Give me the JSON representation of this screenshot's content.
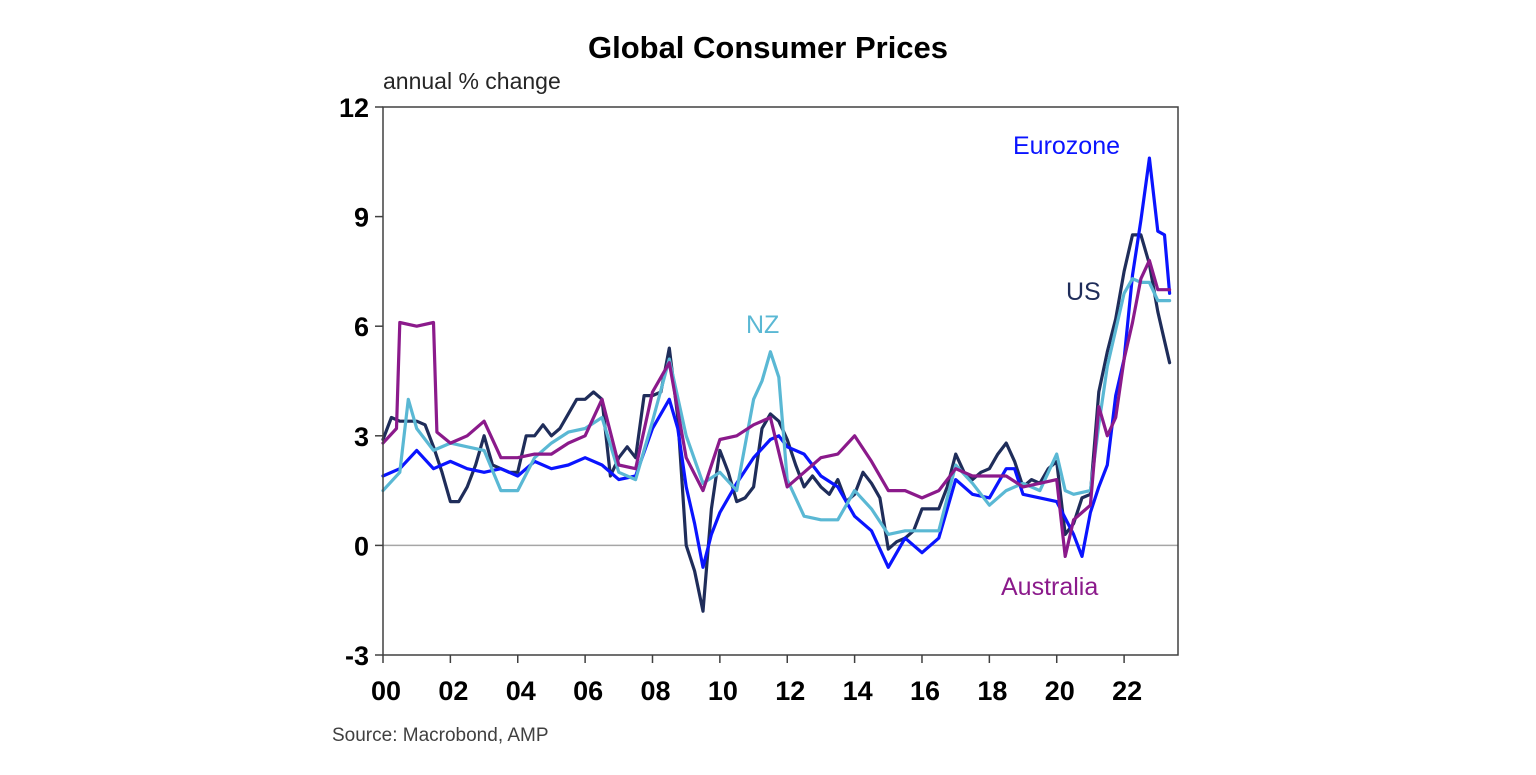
{
  "chart_data": {
    "type": "line",
    "title": "Global Consumer Prices",
    "ylabel": "annual % change",
    "xlabel": "",
    "source": "Source: Macrobond, AMP",
    "ylim": [
      -3,
      12
    ],
    "xlim": [
      2000,
      2023.6
    ],
    "y_ticks": [
      -3,
      0,
      3,
      6,
      9,
      12
    ],
    "y_tick_labels": [
      "-3",
      "0",
      "3",
      "6",
      "9",
      "12"
    ],
    "x_ticks": [
      2000,
      2002,
      2004,
      2006,
      2008,
      2010,
      2012,
      2014,
      2016,
      2018,
      2020,
      2022
    ],
    "x_tick_labels": [
      "00",
      "02",
      "04",
      "06",
      "08",
      "10",
      "12",
      "14",
      "16",
      "18",
      "20",
      "22"
    ],
    "zero_line": true,
    "series": [
      {
        "name": "US",
        "label": "US",
        "color": "#1f2d5a",
        "x": [
          2000,
          2000.25,
          2000.5,
          2000.75,
          2001,
          2001.25,
          2001.5,
          2001.75,
          2002,
          2002.25,
          2002.5,
          2002.75,
          2003,
          2003.25,
          2003.5,
          2003.75,
          2004,
          2004.25,
          2004.5,
          2004.75,
          2005,
          2005.25,
          2005.5,
          2005.75,
          2006,
          2006.25,
          2006.5,
          2006.75,
          2007,
          2007.25,
          2007.5,
          2007.75,
          2008,
          2008.25,
          2008.5,
          2008.75,
          2009,
          2009.25,
          2009.5,
          2009.75,
          2010,
          2010.25,
          2010.5,
          2010.75,
          2011,
          2011.25,
          2011.5,
          2011.75,
          2012,
          2012.25,
          2012.5,
          2012.75,
          2013,
          2013.25,
          2013.5,
          2013.75,
          2014,
          2014.25,
          2014.5,
          2014.75,
          2015,
          2015.25,
          2015.5,
          2015.75,
          2016,
          2016.25,
          2016.5,
          2016.75,
          2017,
          2017.25,
          2017.5,
          2017.75,
          2018,
          2018.25,
          2018.5,
          2018.75,
          2019,
          2019.25,
          2019.5,
          2019.75,
          2020,
          2020.25,
          2020.5,
          2020.75,
          2021,
          2021.25,
          2021.5,
          2021.75,
          2022,
          2022.25,
          2022.5,
          2022.75,
          2023,
          2023.15,
          2023.35
        ],
        "y": [
          2.9,
          3.5,
          3.4,
          3.4,
          3.4,
          3.3,
          2.7,
          2.0,
          1.2,
          1.2,
          1.6,
          2.2,
          3.0,
          2.2,
          2.1,
          2.0,
          2.0,
          3.0,
          3.0,
          3.3,
          3.0,
          3.2,
          3.6,
          4.0,
          4.0,
          4.2,
          4.0,
          1.9,
          2.4,
          2.7,
          2.4,
          4.1,
          4.1,
          4.2,
          5.4,
          3.5,
          0.0,
          -0.7,
          -1.8,
          1.0,
          2.6,
          2.0,
          1.2,
          1.3,
          1.6,
          3.2,
          3.6,
          3.4,
          2.9,
          2.2,
          1.6,
          1.9,
          1.6,
          1.4,
          1.8,
          1.2,
          1.4,
          2.0,
          1.7,
          1.3,
          -0.1,
          0.1,
          0.2,
          0.4,
          1.0,
          1.0,
          1.0,
          1.6,
          2.5,
          2.0,
          1.8,
          2.0,
          2.1,
          2.5,
          2.8,
          2.3,
          1.6,
          1.8,
          1.7,
          2.1,
          2.3,
          0.3,
          0.6,
          1.3,
          1.4,
          4.2,
          5.3,
          6.2,
          7.5,
          8.5,
          8.5,
          7.7,
          6.4,
          5.8,
          5.0
        ]
      },
      {
        "name": "Eurozone",
        "label": "Eurozone",
        "color": "#0a14ff",
        "x": [
          2000,
          2000.5,
          2001,
          2001.5,
          2002,
          2002.5,
          2003,
          2003.5,
          2004,
          2004.5,
          2005,
          2005.5,
          2006,
          2006.5,
          2007,
          2007.5,
          2008,
          2008.5,
          2008.75,
          2009,
          2009.25,
          2009.5,
          2009.75,
          2010,
          2010.5,
          2011,
          2011.5,
          2011.75,
          2012,
          2012.5,
          2013,
          2013.5,
          2014,
          2014.5,
          2015,
          2015.5,
          2016,
          2016.5,
          2017,
          2017.5,
          2018,
          2018.5,
          2018.75,
          2019,
          2019.5,
          2020,
          2020.5,
          2020.75,
          2021,
          2021.25,
          2021.5,
          2021.75,
          2022,
          2022.25,
          2022.5,
          2022.75,
          2023,
          2023.2,
          2023.35
        ],
        "y": [
          1.9,
          2.1,
          2.6,
          2.1,
          2.3,
          2.1,
          2.0,
          2.1,
          1.9,
          2.3,
          2.1,
          2.2,
          2.4,
          2.2,
          1.8,
          1.9,
          3.2,
          4.0,
          3.2,
          1.6,
          0.6,
          -0.6,
          0.3,
          0.9,
          1.7,
          2.4,
          2.9,
          3.0,
          2.7,
          2.5,
          1.9,
          1.6,
          0.8,
          0.4,
          -0.6,
          0.2,
          -0.2,
          0.2,
          1.8,
          1.4,
          1.3,
          2.1,
          2.1,
          1.4,
          1.3,
          1.2,
          0.3,
          -0.3,
          0.9,
          1.6,
          2.2,
          4.1,
          5.1,
          7.4,
          8.9,
          10.6,
          8.6,
          8.5,
          6.9
        ]
      },
      {
        "name": "NZ",
        "label": "NZ",
        "color": "#5ab8d4",
        "x": [
          2000,
          2000.5,
          2000.75,
          2001,
          2001.5,
          2002,
          2002.5,
          2003,
          2003.5,
          2004,
          2004.5,
          2005,
          2005.5,
          2006,
          2006.5,
          2007,
          2007.5,
          2008,
          2008.5,
          2009,
          2009.5,
          2010,
          2010.5,
          2011,
          2011.25,
          2011.5,
          2011.75,
          2012,
          2012.5,
          2013,
          2013.5,
          2014,
          2014.5,
          2015,
          2015.5,
          2016,
          2016.5,
          2017,
          2017.5,
          2018,
          2018.5,
          2019,
          2019.5,
          2020,
          2020.25,
          2020.5,
          2021,
          2021.25,
          2021.5,
          2021.75,
          2022,
          2022.25,
          2022.5,
          2022.75,
          2023,
          2023.35
        ],
        "y": [
          1.5,
          2.0,
          4.0,
          3.2,
          2.6,
          2.8,
          2.7,
          2.6,
          1.5,
          1.5,
          2.4,
          2.8,
          3.1,
          3.2,
          3.5,
          2.0,
          1.8,
          3.4,
          5.1,
          3.0,
          1.7,
          2.0,
          1.5,
          4.0,
          4.5,
          5.3,
          4.6,
          1.8,
          0.8,
          0.7,
          0.7,
          1.5,
          1.0,
          0.3,
          0.4,
          0.4,
          0.4,
          2.2,
          1.7,
          1.1,
          1.5,
          1.7,
          1.5,
          2.5,
          1.5,
          1.4,
          1.5,
          3.3,
          4.9,
          5.9,
          6.9,
          7.3,
          7.2,
          7.2,
          6.7,
          6.7
        ]
      },
      {
        "name": "Australia",
        "label": "Australia",
        "color": "#8b1a8b",
        "x": [
          2000,
          2000.4,
          2000.5,
          2001,
          2001.5,
          2001.6,
          2002,
          2002.5,
          2003,
          2003.5,
          2004,
          2004.5,
          2005,
          2005.5,
          2006,
          2006.5,
          2007,
          2007.5,
          2008,
          2008.5,
          2009,
          2009.5,
          2010,
          2010.5,
          2011,
          2011.5,
          2012,
          2012.5,
          2013,
          2013.5,
          2014,
          2014.5,
          2015,
          2015.5,
          2016,
          2016.5,
          2017,
          2017.5,
          2018,
          2018.5,
          2019,
          2019.5,
          2020,
          2020.25,
          2020.5,
          2020.75,
          2021,
          2021.25,
          2021.5,
          2021.75,
          2022,
          2022.25,
          2022.5,
          2022.75,
          2023,
          2023.35
        ],
        "y": [
          2.8,
          3.2,
          6.1,
          6.0,
          6.1,
          3.1,
          2.8,
          3.0,
          3.4,
          2.4,
          2.4,
          2.5,
          2.5,
          2.8,
          3.0,
          4.0,
          2.2,
          2.1,
          4.2,
          5.0,
          2.4,
          1.5,
          2.9,
          3.0,
          3.3,
          3.5,
          1.6,
          2.0,
          2.4,
          2.5,
          3.0,
          2.3,
          1.5,
          1.5,
          1.3,
          1.5,
          2.1,
          1.9,
          1.9,
          1.9,
          1.6,
          1.7,
          1.8,
          -0.3,
          0.7,
          0.9,
          1.1,
          3.8,
          3.0,
          3.5,
          5.1,
          6.1,
          7.3,
          7.8,
          7.0,
          7.0
        ]
      }
    ]
  }
}
